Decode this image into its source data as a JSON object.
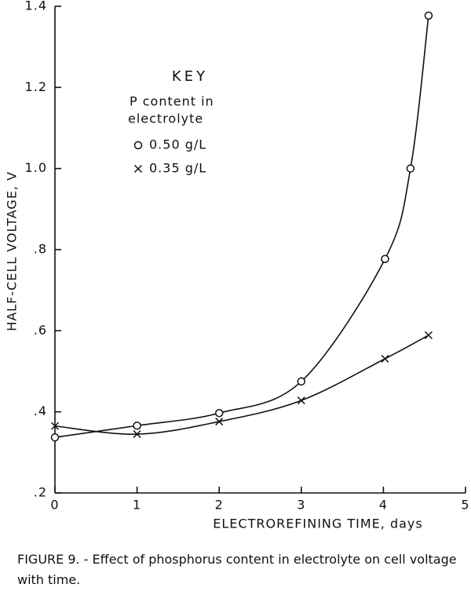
{
  "chart_data": {
    "type": "line",
    "x_label": "ELECTROREFINING TIME, days",
    "y_label": "HALF-CELL VOLTAGE, V",
    "caption": "FIGURE 9. - Effect of phosphorus content in electrolyte on cell voltage with time.",
    "legend_title": "KEY",
    "legend_note": [
      "P  content in",
      "electrolyte"
    ],
    "xlim": [
      0,
      5
    ],
    "xticks": [
      0,
      1,
      2,
      3,
      4,
      5
    ],
    "ylim": [
      0.2,
      1.4
    ],
    "yticks": [
      {
        "value": 0.2,
        "label": ".2"
      },
      {
        "value": 0.4,
        "label": ".4"
      },
      {
        "value": 0.6,
        "label": ".6"
      },
      {
        "value": 0.8,
        "label": ".8"
      },
      {
        "value": 1.0,
        "label": "1.0"
      },
      {
        "value": 1.2,
        "label": "1.2"
      },
      {
        "value": 1.4,
        "label": "1.4"
      }
    ],
    "series": [
      {
        "name": "0.50 g/L",
        "color": "#111111",
        "marker": "circle",
        "x": [
          0,
          1,
          2,
          3,
          4.02,
          4.33,
          4.55
        ],
        "values": [
          0.337,
          0.366,
          0.397,
          0.475,
          0.777,
          1.0,
          1.377
        ]
      },
      {
        "name": "0.35 g/L",
        "color": "#111111",
        "marker": "x",
        "x": [
          0,
          1,
          2,
          3,
          4.02,
          4.55
        ],
        "values": [
          0.365,
          0.345,
          0.376,
          0.428,
          0.531,
          0.589
        ]
      }
    ]
  }
}
